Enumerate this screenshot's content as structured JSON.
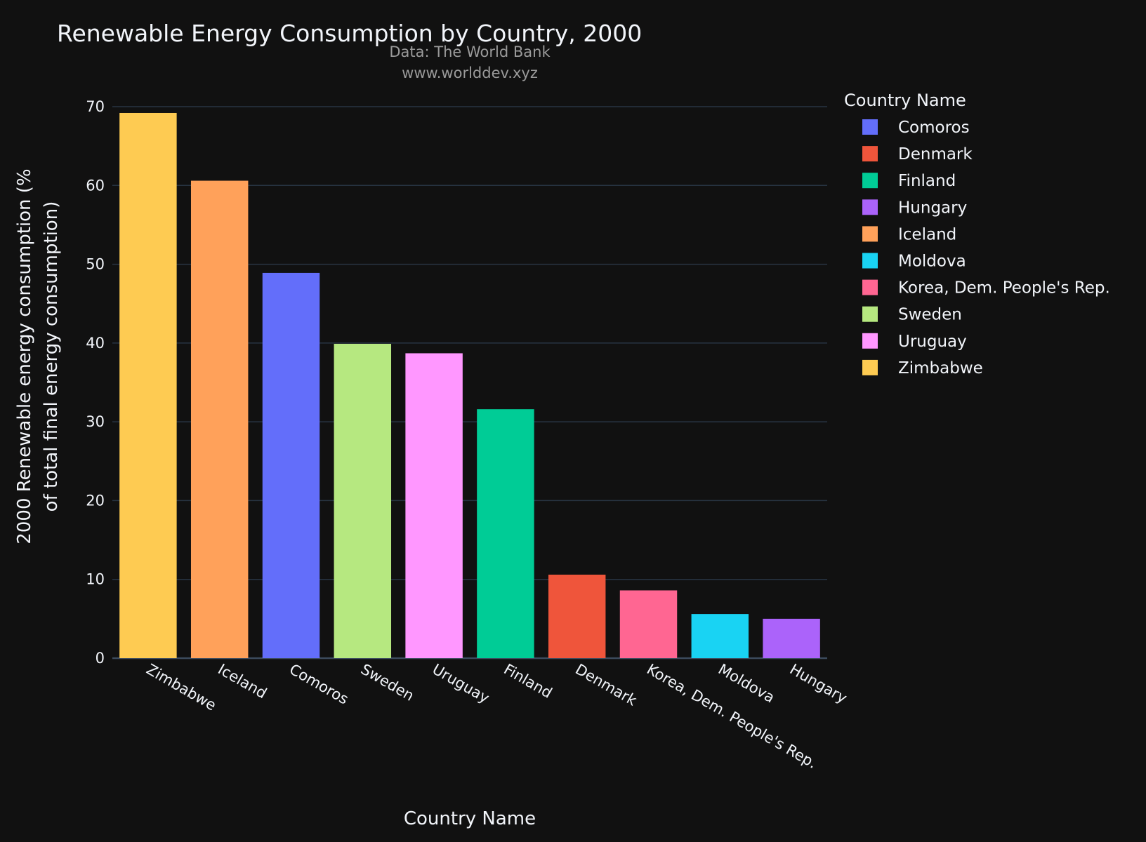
{
  "chart_data": {
    "type": "bar",
    "title": "Renewable Energy Consumption by Country, 2000",
    "subtitle_lines": [
      "Data: The World Bank",
      "www.worlddev.xyz"
    ],
    "xlabel": "Country Name",
    "ylabel_lines": [
      "2000 Renewable energy consumption (%",
      "of total final energy consumption)"
    ],
    "ylim": [
      0,
      70
    ],
    "yticks": [
      0,
      10,
      20,
      30,
      40,
      50,
      60,
      70
    ],
    "grid": true,
    "legend_title": "Country Name",
    "legend_placement": "right",
    "categories": [
      "Zimbabwe",
      "Iceland",
      "Comoros",
      "Sweden",
      "Uruguay",
      "Finland",
      "Denmark",
      "Korea, Dem. People's Rep.",
      "Moldova",
      "Hungary"
    ],
    "values": [
      69.2,
      60.6,
      48.9,
      39.9,
      38.7,
      31.6,
      10.6,
      8.6,
      5.6,
      5.0
    ],
    "colors": {
      "Comoros": "#636efa",
      "Denmark": "#ef553b",
      "Finland": "#00cc96",
      "Hungary": "#ab63fa",
      "Iceland": "#ffa15a",
      "Moldova": "#19d3f3",
      "Korea, Dem. People's Rep.": "#ff6692",
      "Sweden": "#b6e880",
      "Uruguay": "#ff97ff",
      "Zimbabwe": "#fecb52"
    },
    "legend_order": [
      "Comoros",
      "Denmark",
      "Finland",
      "Hungary",
      "Iceland",
      "Moldova",
      "Korea, Dem. People's Rep.",
      "Sweden",
      "Uruguay",
      "Zimbabwe"
    ]
  }
}
